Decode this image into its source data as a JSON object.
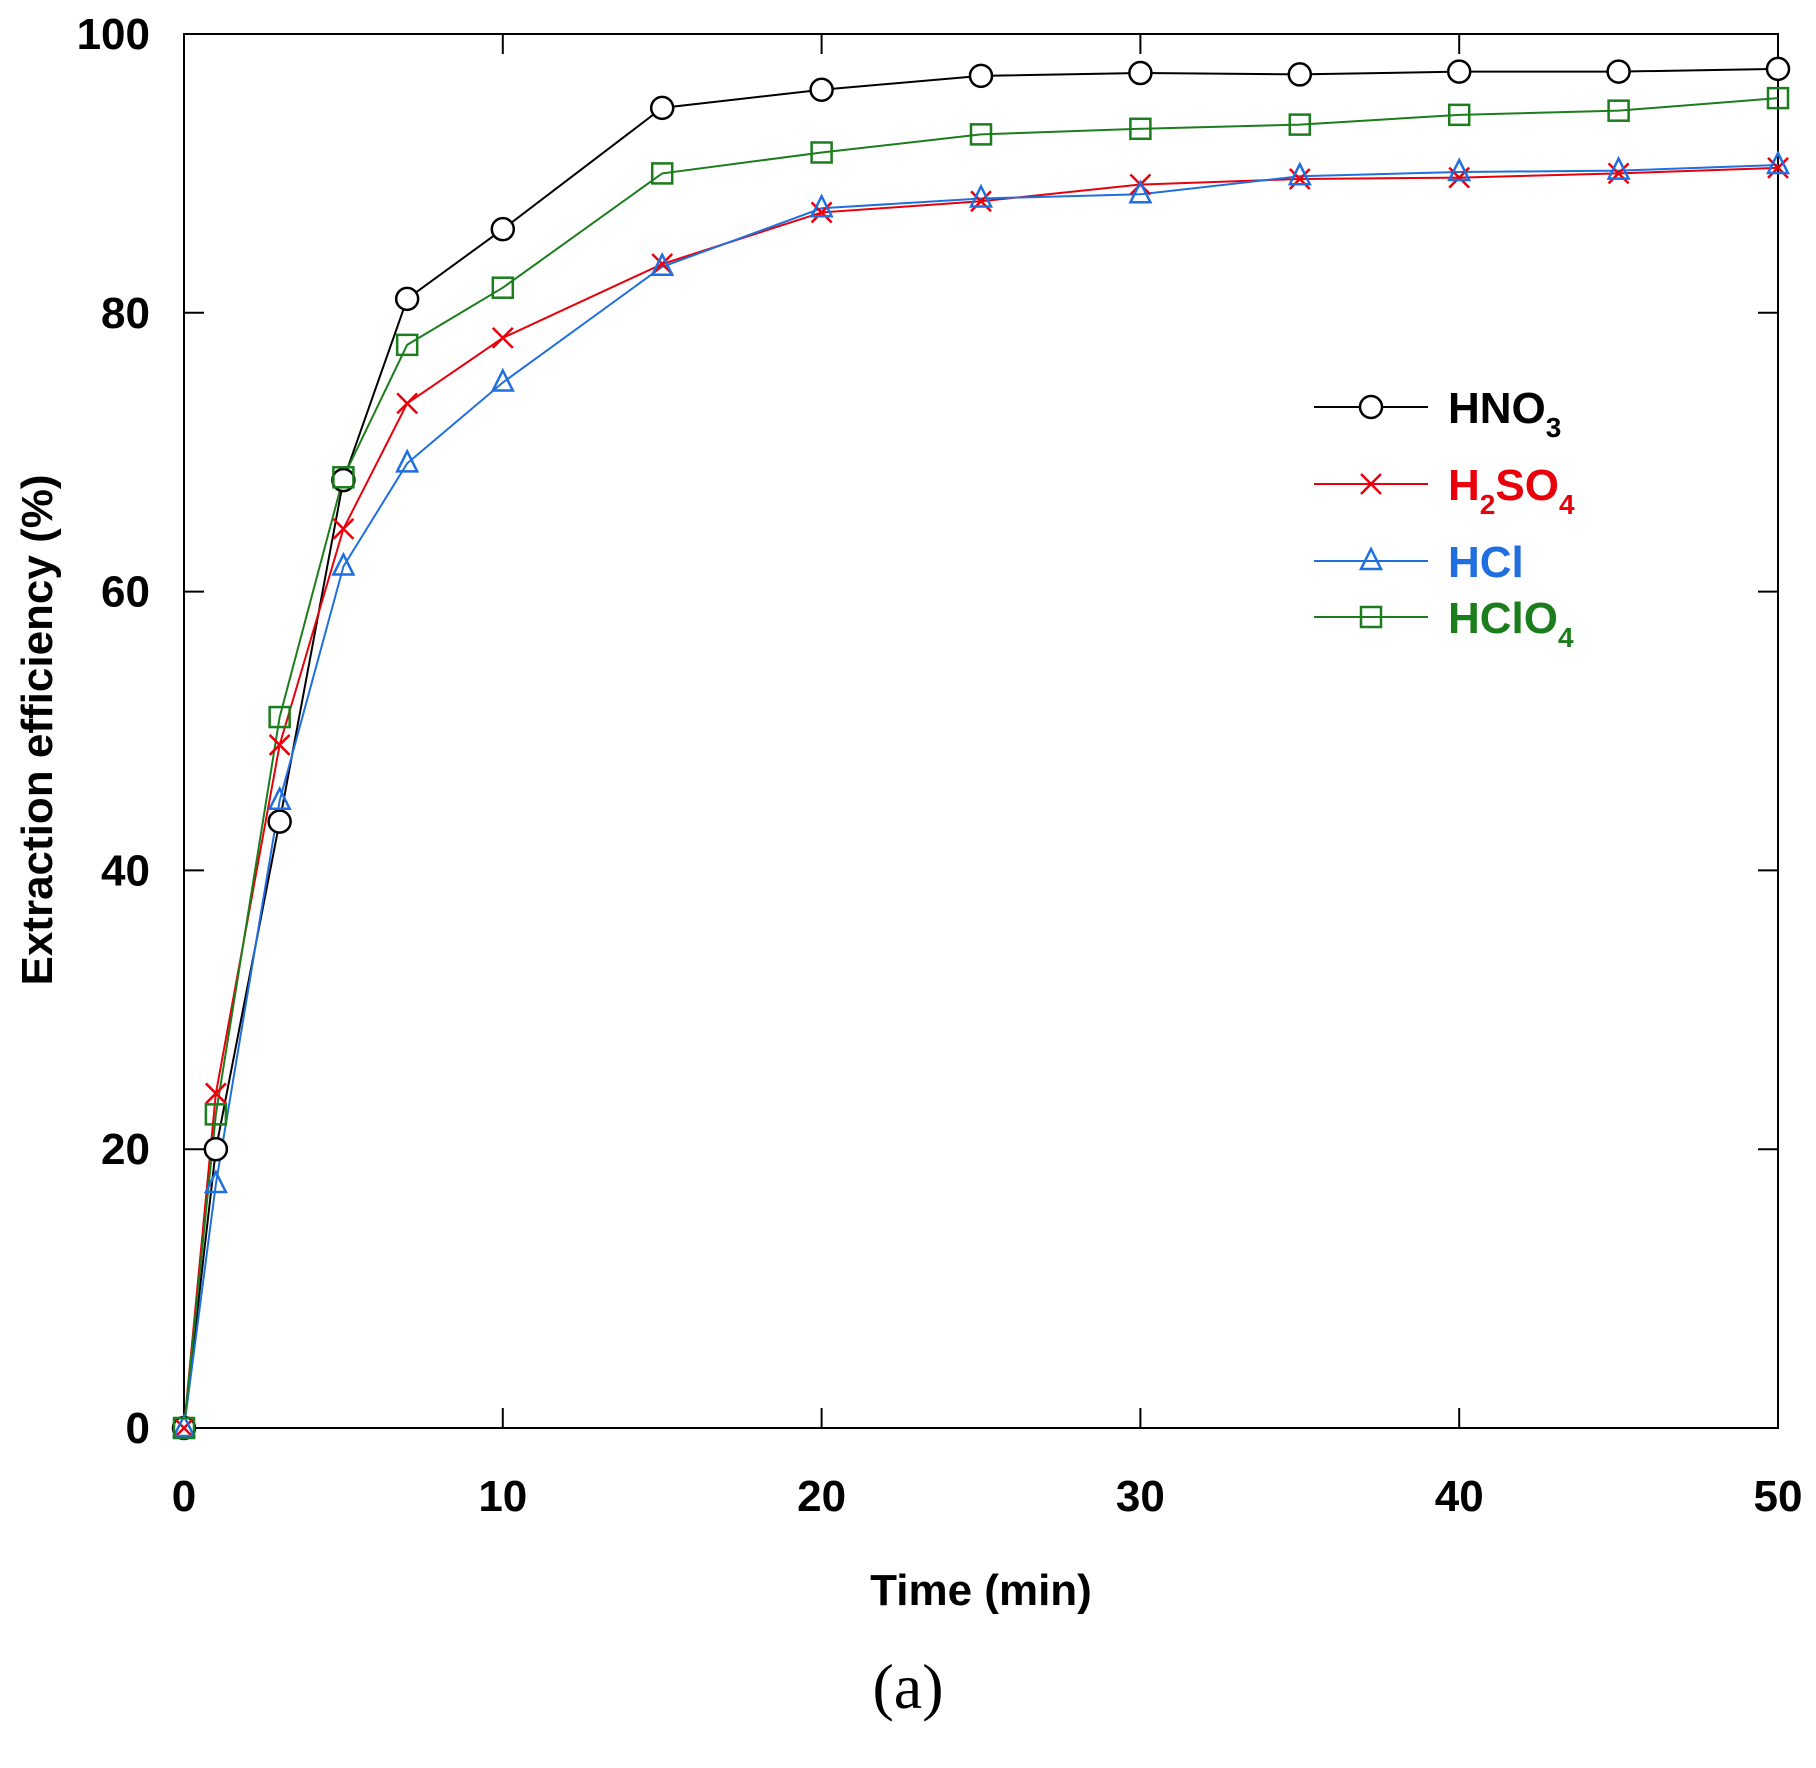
{
  "chart_data": {
    "type": "line",
    "title": "",
    "xlabel": "Time (min)",
    "ylabel": "Extraction efficiency (%)",
    "xlim": [
      0,
      50
    ],
    "ylim": [
      0,
      100
    ],
    "xticks": [
      0,
      10,
      20,
      30,
      40,
      50
    ],
    "yticks": [
      0,
      20,
      40,
      60,
      80,
      100
    ],
    "grid": false,
    "legend_position": "right-middle",
    "caption": "(a)",
    "x": [
      0,
      1,
      3,
      5,
      7,
      10,
      15,
      20,
      25,
      30,
      35,
      40,
      45,
      50
    ],
    "series": [
      {
        "name": "HNO3",
        "label_main": "HNO",
        "label_sub": "3",
        "label_tail": "",
        "label_sub2": "",
        "color": "#000000",
        "marker": "circle",
        "values": [
          0,
          20,
          43.5,
          68,
          81,
          86,
          94.7,
          96,
          97,
          97.2,
          97.1,
          97.3,
          97.3,
          97.5
        ]
      },
      {
        "name": "H2SO4",
        "label_main": "H",
        "label_sub": "2",
        "label_tail": "SO",
        "label_sub2": "4",
        "color": "#e8000b",
        "marker": "x",
        "values": [
          0,
          24,
          49,
          64.5,
          73.5,
          78.2,
          83.5,
          87.2,
          88,
          89.2,
          89.6,
          89.7,
          90,
          90.4
        ]
      },
      {
        "name": "HCl",
        "label_main": "HCl",
        "label_sub": "",
        "label_tail": "",
        "label_sub2": "",
        "color": "#1f6fe0",
        "marker": "triangle",
        "values": [
          0,
          17.5,
          45,
          61.8,
          69.2,
          75,
          83.3,
          87.5,
          88.2,
          88.5,
          89.8,
          90.1,
          90.2,
          90.6
        ]
      },
      {
        "name": "HClO4",
        "label_main": "HClO",
        "label_sub": "4",
        "label_tail": "",
        "label_sub2": "",
        "color": "#1b7d1b",
        "marker": "square",
        "values": [
          0,
          22.5,
          51,
          68.2,
          77.7,
          81.8,
          90,
          91.5,
          92.8,
          93.2,
          93.5,
          94.2,
          94.5,
          95.4
        ]
      }
    ]
  }
}
